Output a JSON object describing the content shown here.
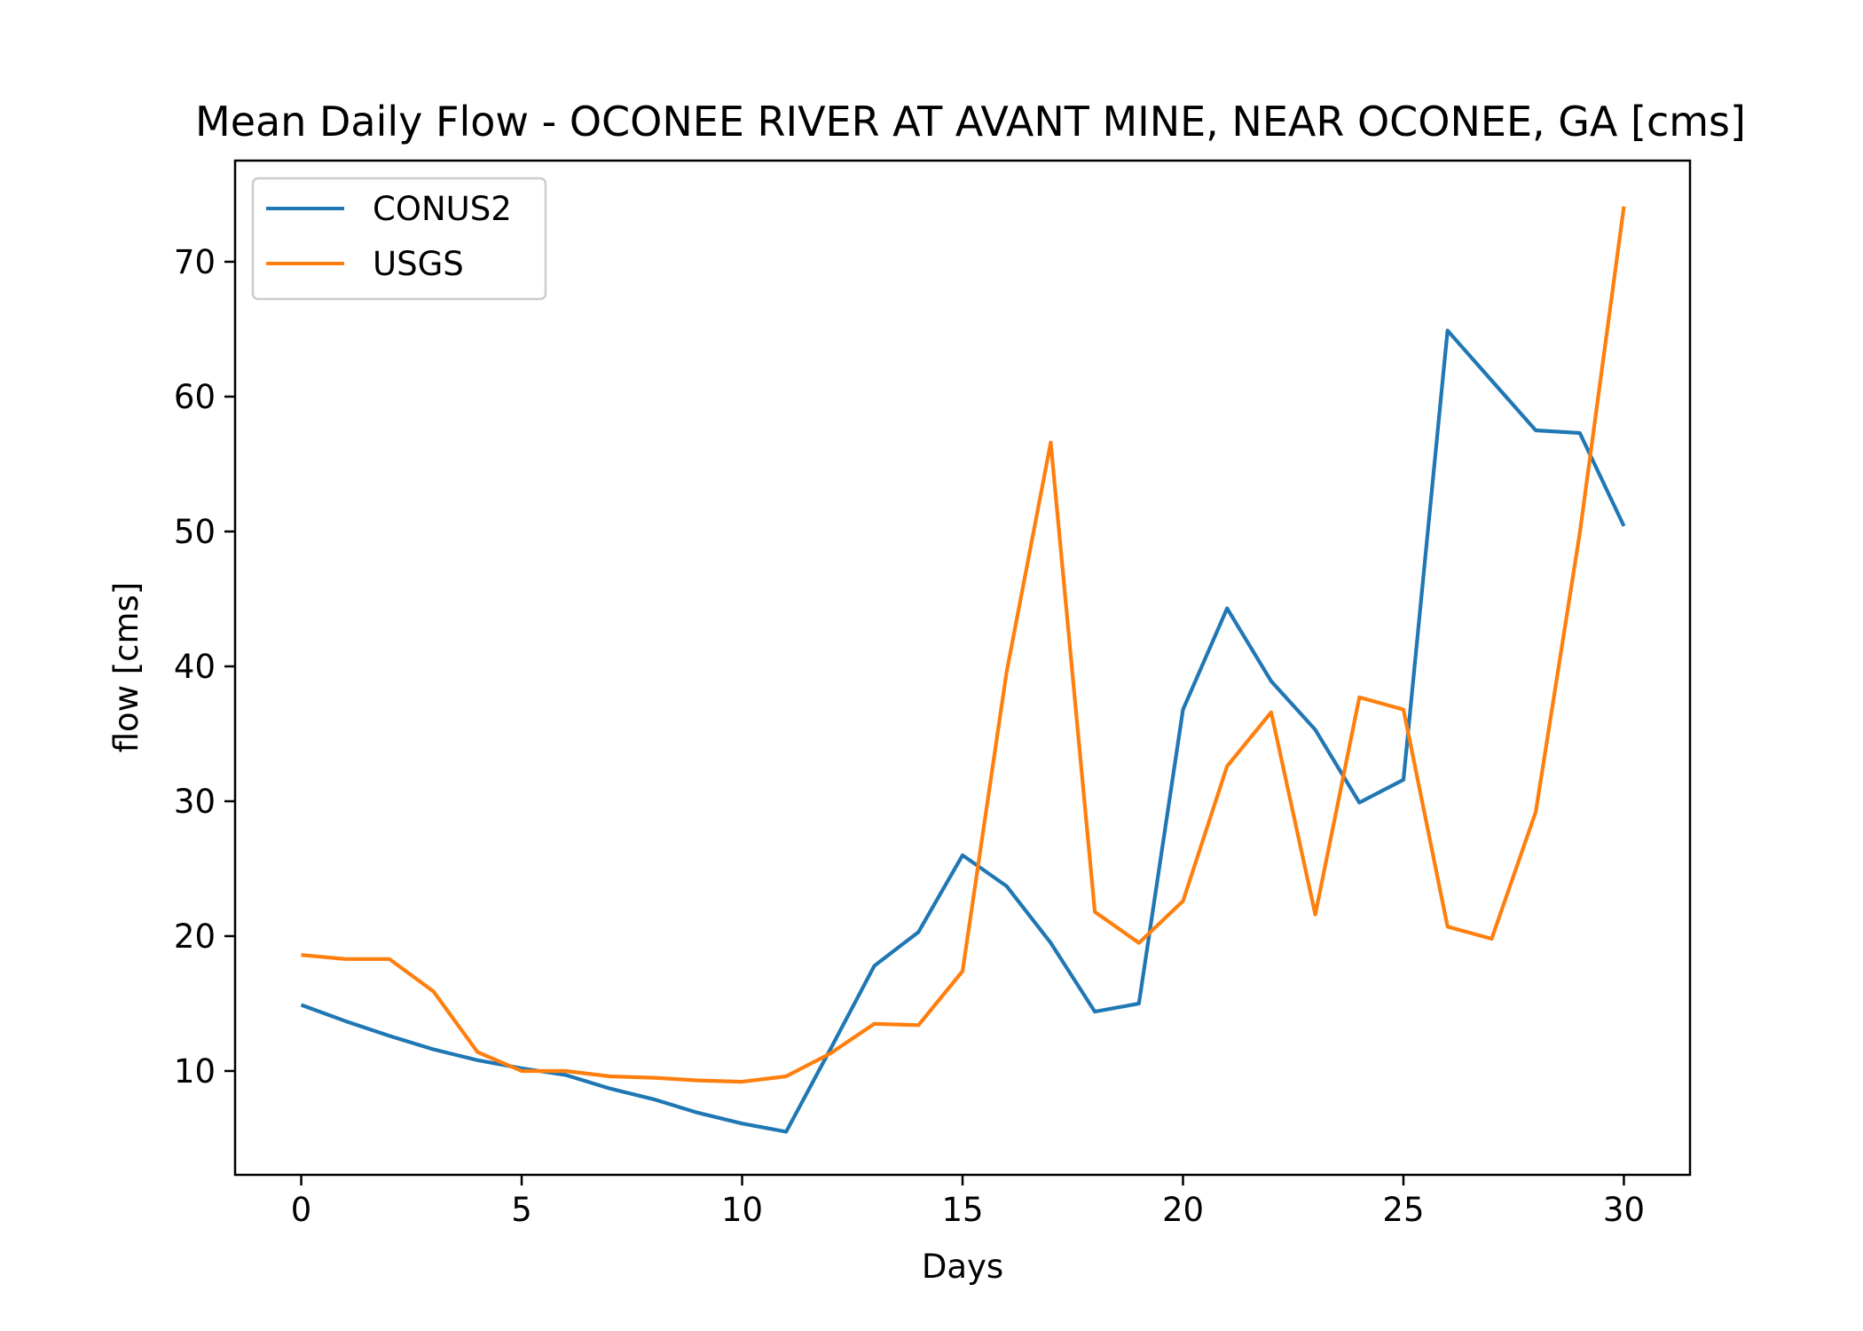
{
  "chart_data": {
    "type": "line",
    "title": "Mean Daily Flow - OCONEE RIVER AT AVANT MINE, NEAR OCONEE, GA [cms]",
    "xlabel": "Days",
    "ylabel": "flow [cms]",
    "xlim": [
      -1.5,
      31.5
    ],
    "ylim": [
      2.3,
      77.5
    ],
    "xticks": [
      0,
      5,
      10,
      15,
      20,
      25,
      30
    ],
    "yticks": [
      10,
      20,
      30,
      40,
      50,
      60,
      70
    ],
    "grid": false,
    "legend_position": "upper left",
    "x": [
      0,
      1,
      2,
      3,
      4,
      5,
      6,
      7,
      8,
      9,
      10,
      11,
      12,
      13,
      14,
      15,
      16,
      17,
      18,
      19,
      20,
      21,
      22,
      23,
      24,
      25,
      26,
      27,
      28,
      29,
      30
    ],
    "series": [
      {
        "name": "CONUS2",
        "color": "#1f77b4",
        "values": [
          14.9,
          13.7,
          12.6,
          11.6,
          10.8,
          10.2,
          9.7,
          8.7,
          7.9,
          6.9,
          6.1,
          5.5,
          11.6,
          17.8,
          20.3,
          26.0,
          23.7,
          19.5,
          14.4,
          15.0,
          36.8,
          44.3,
          38.9,
          35.3,
          29.9,
          31.6,
          64.9,
          61.2,
          57.5,
          57.3,
          50.4
        ]
      },
      {
        "name": "USGS",
        "color": "#ff7f0e",
        "values": [
          18.6,
          18.3,
          18.3,
          15.9,
          11.4,
          10.0,
          10.0,
          9.6,
          9.5,
          9.3,
          9.2,
          9.6,
          11.3,
          13.5,
          13.4,
          17.4,
          39.6,
          56.6,
          21.8,
          19.5,
          22.6,
          32.6,
          36.6,
          21.6,
          37.7,
          36.8,
          20.7,
          19.8,
          29.2,
          49.9,
          74.1
        ]
      }
    ]
  }
}
